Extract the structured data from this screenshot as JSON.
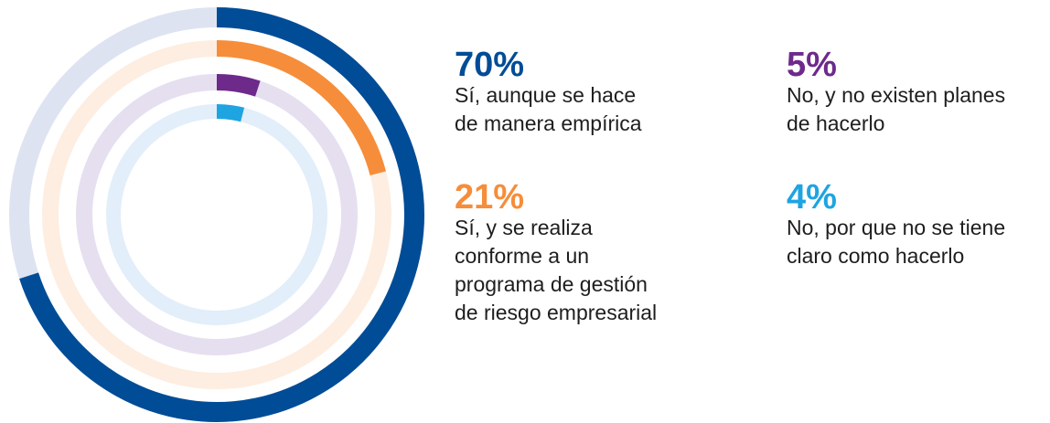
{
  "chart_data": {
    "type": "radial_bar",
    "values": [
      70,
      21,
      5,
      4
    ],
    "value_labels": [
      "70%",
      "21%",
      "5%",
      "4%"
    ],
    "labels": [
      [
        "Sí, aunque se hace",
        "de manera empírica"
      ],
      [
        "Sí, y se realiza",
        "conforme a un",
        "programa de gestión",
        "de riesgo empresarial"
      ],
      [
        "No, y no existen planes",
        "de hacerlo"
      ],
      [
        "No, por que no se tiene",
        "claro como hacerlo"
      ]
    ],
    "colors": [
      "#004c97",
      "#f68d3a",
      "#6d2a8b",
      "#1ea4e1"
    ],
    "track_colors": [
      "#dee3f1",
      "#fdeee1",
      "#e5dff0",
      "#e2eef9"
    ],
    "ylim": [
      0,
      100
    ]
  }
}
